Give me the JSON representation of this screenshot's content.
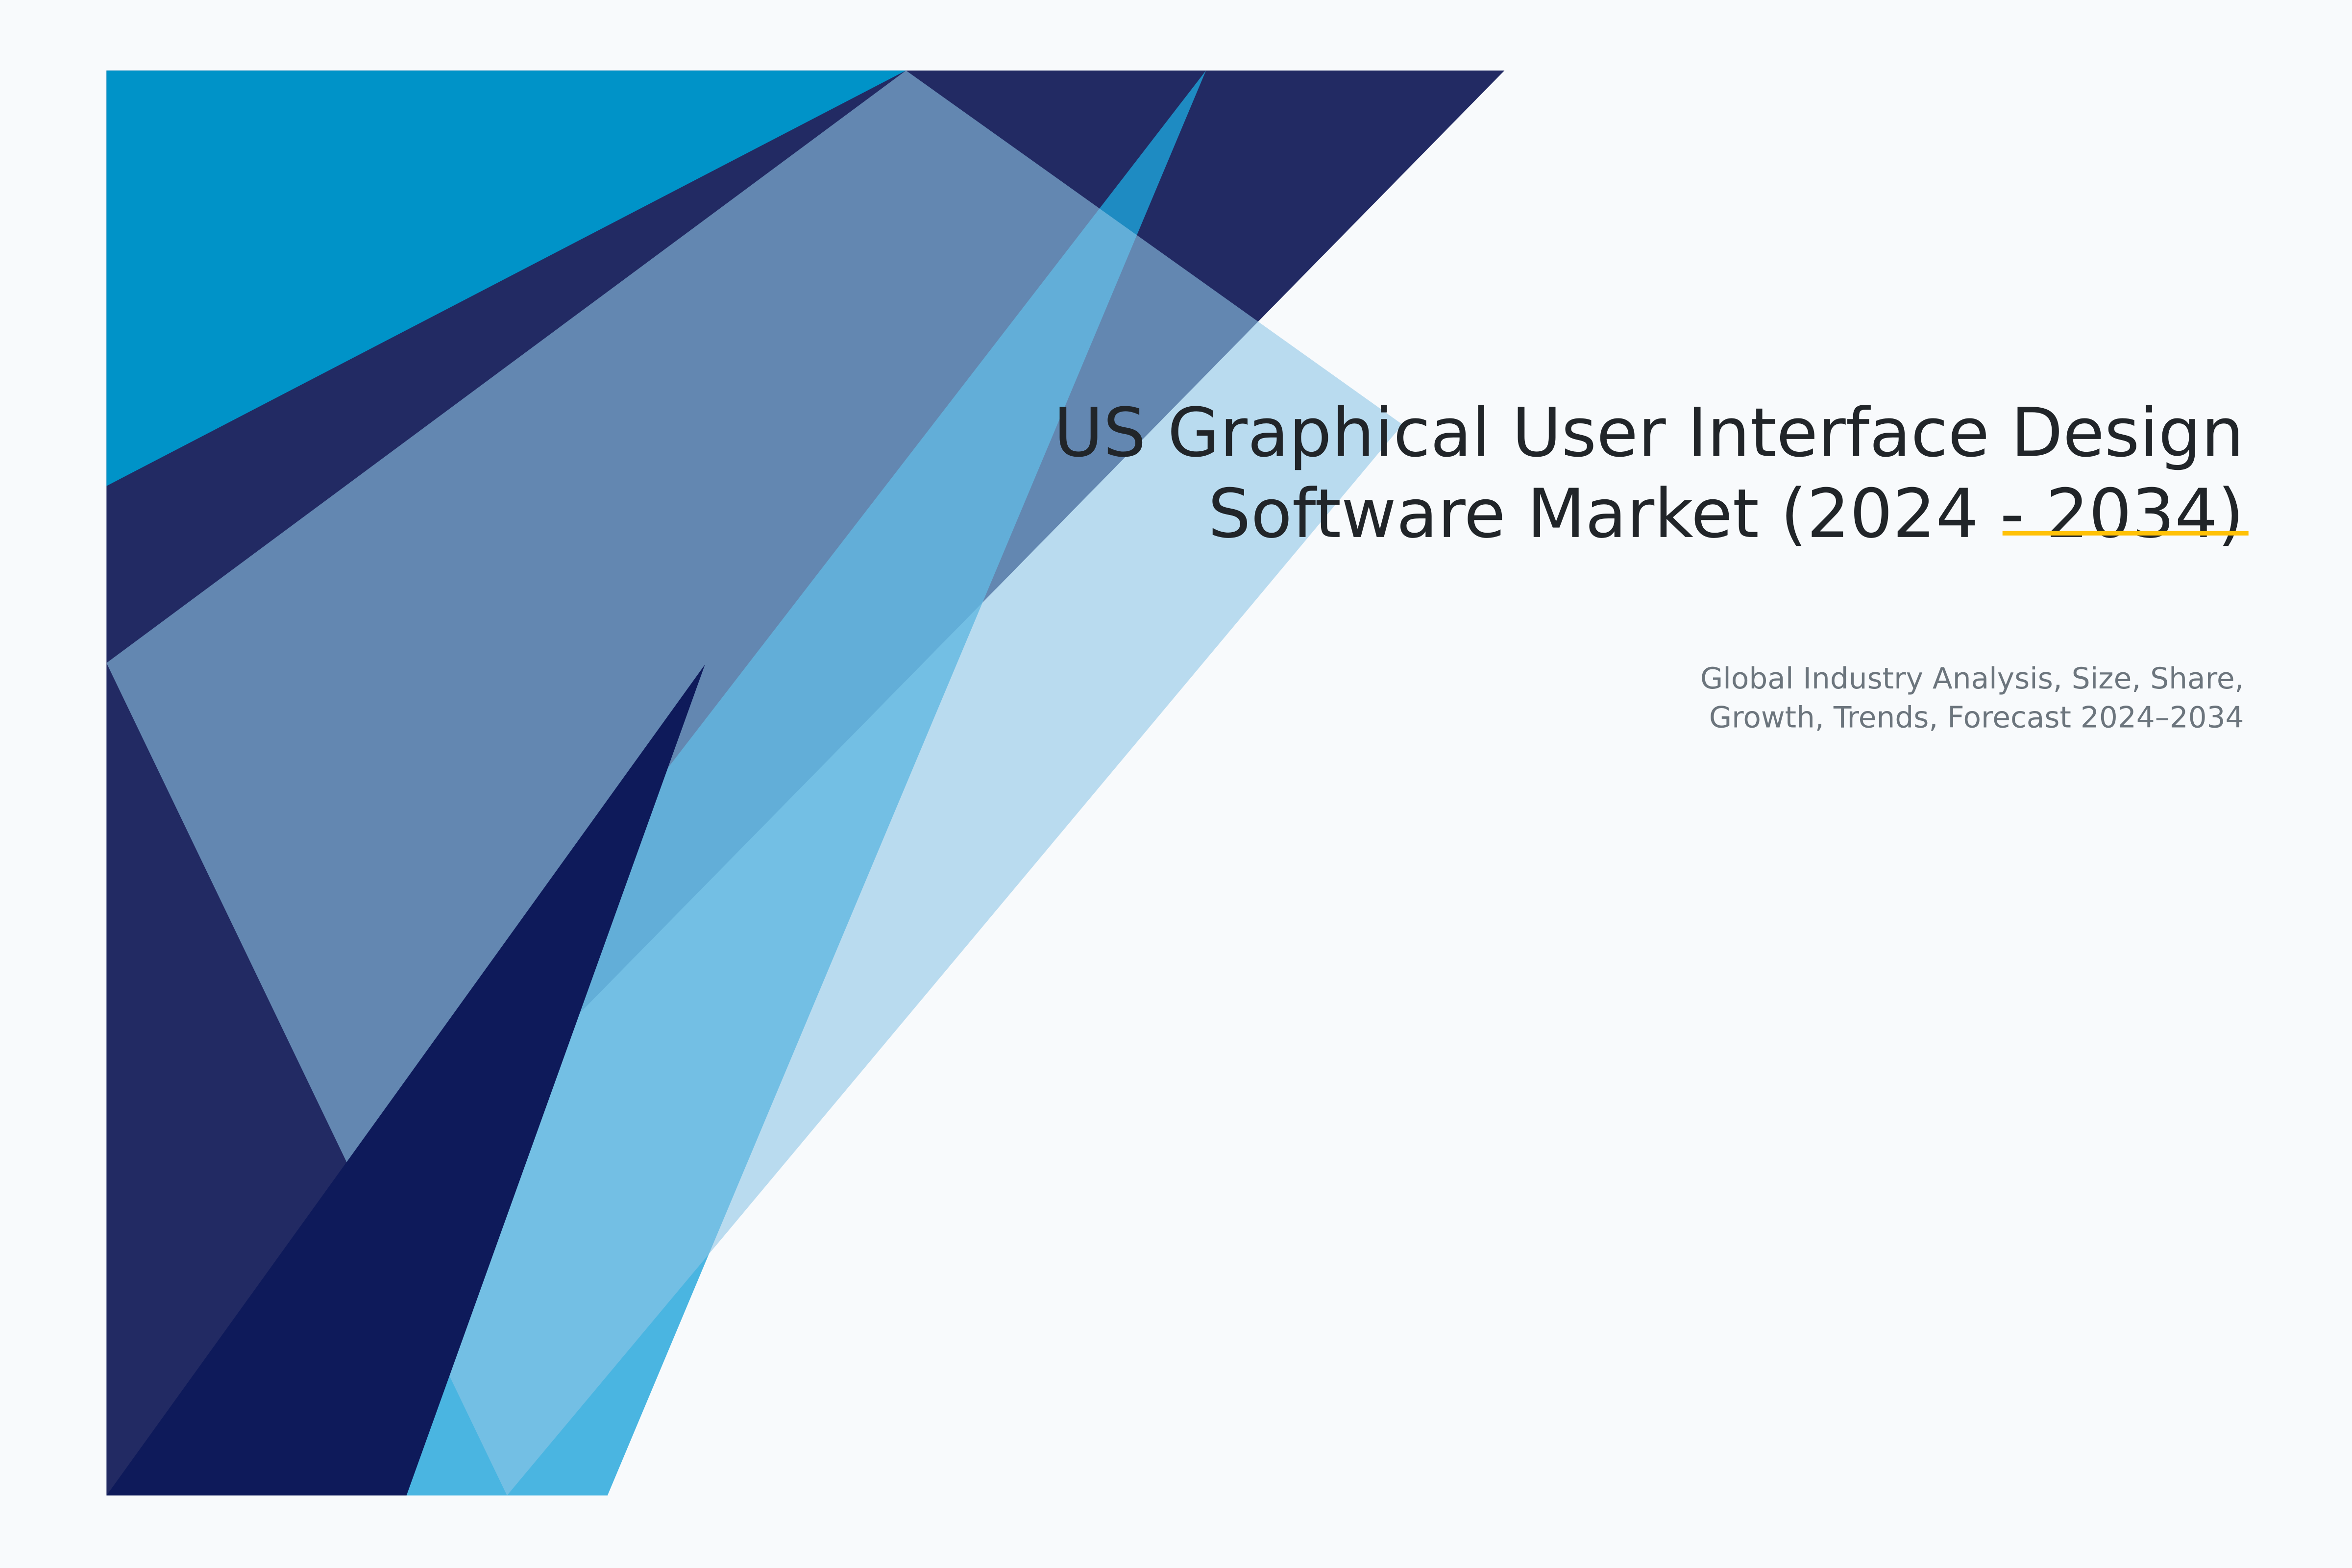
{
  "title": {
    "line1": "US Graphical User Interface Design",
    "line2": "Software Market (2024 - 2034)"
  },
  "subtitle": {
    "line1": "Global Industry Analysis, Size, Share,",
    "line2": "Growth, Trends, Forecast 2024–2034"
  },
  "colors": {
    "background": "#f8fafc",
    "navy": "#222a63",
    "cyan": "#0093c8",
    "medium_blue": "#1ea4da",
    "light_blue": "#8fc6e6",
    "deep_navy": "#0e1a5a",
    "accent": "#ffc107",
    "title_text": "#212529",
    "subtitle_text": "#6c757d"
  }
}
